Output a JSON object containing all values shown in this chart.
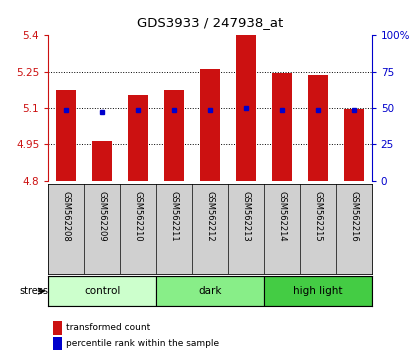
{
  "title": "GDS3933 / 247938_at",
  "samples": [
    "GSM562208",
    "GSM562209",
    "GSM562210",
    "GSM562211",
    "GSM562212",
    "GSM562213",
    "GSM562214",
    "GSM562215",
    "GSM562216"
  ],
  "transformed_counts": [
    5.175,
    4.965,
    5.155,
    5.175,
    5.26,
    5.4,
    5.245,
    5.235,
    5.095
  ],
  "percentile_ranks": [
    5.092,
    5.082,
    5.093,
    5.092,
    5.093,
    5.101,
    5.093,
    5.093,
    5.093
  ],
  "ylim_left": [
    4.8,
    5.4
  ],
  "ylim_right": [
    0,
    100
  ],
  "yticks_left": [
    4.8,
    4.95,
    5.1,
    5.25,
    5.4
  ],
  "yticks_right": [
    0,
    25,
    50,
    75,
    100
  ],
  "ytick_labels_left": [
    "4.8",
    "4.95",
    "5.1",
    "5.25",
    "5.4"
  ],
  "ytick_labels_right": [
    "0",
    "25",
    "50",
    "75",
    "100%"
  ],
  "bar_color": "#cc1111",
  "dot_color": "#0000cc",
  "bar_bottom": 4.8,
  "bar_width": 0.55,
  "groups": [
    {
      "label": "control",
      "indices": [
        0,
        1,
        2
      ],
      "color": "#ccffcc"
    },
    {
      "label": "dark",
      "indices": [
        3,
        4,
        5
      ],
      "color": "#88ee88"
    },
    {
      "label": "high light",
      "indices": [
        6,
        7,
        8
      ],
      "color": "#44cc44"
    }
  ],
  "stress_label": "stress",
  "legend_items": [
    {
      "color": "#cc1111",
      "label": "transformed count"
    },
    {
      "color": "#0000cc",
      "label": "percentile rank within the sample"
    }
  ],
  "background_color": "#ffffff",
  "plot_bg_color": "#ffffff",
  "label_area_color": "#d0d0d0",
  "grid_lines": [
    4.95,
    5.1,
    5.25
  ]
}
